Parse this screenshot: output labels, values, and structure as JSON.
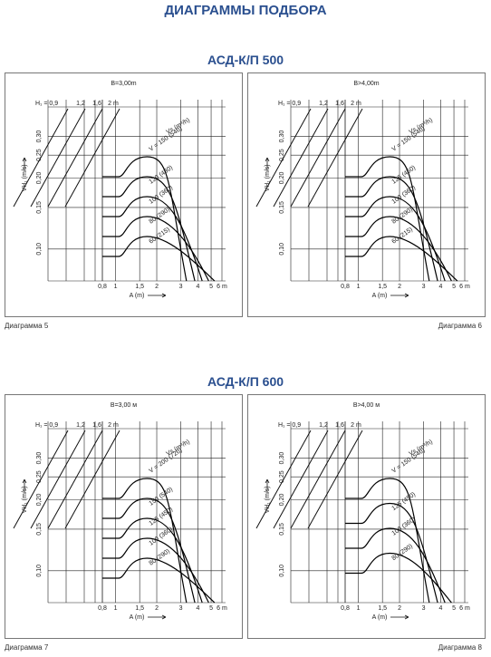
{
  "header": {
    "title": "ДИАГРАММЫ ПОДБОРА"
  },
  "sections": [
    {
      "title": "АСД-К/П 500",
      "panels": [
        {
          "caption": "B=3,00m",
          "label": "Диаграмма 5",
          "h_ticks": [
            "H₁ = 0,9",
            "1,2",
            "1,6",
            "2 m"
          ],
          "y_ticks": [
            "0,10",
            "0,15",
            "0,20",
            "0,25",
            "0,30"
          ],
          "y_label": "VH₁ (m/s)",
          "x_ticks": [
            "0,8",
            "1",
            "1,5",
            "2",
            "3",
            "4",
            "5",
            "6 m"
          ],
          "x_label": "A (m)",
          "flow_label": "Vs (m³/h)",
          "curves": [
            "V = 150 (540)",
            "120 (430)",
            "100 (360)",
            "80 (290)",
            "60 (215)"
          ]
        },
        {
          "caption": "B>4,00m",
          "label": "Диаграмма 6",
          "h_ticks": [
            "H₁ = 0,9",
            "1,2",
            "1,6",
            "2 m"
          ],
          "y_ticks": [
            "0,10",
            "0,15",
            "0,20",
            "0,25",
            "0,30"
          ],
          "y_label": "VH₁ (m/s)",
          "x_ticks": [
            "0,8",
            "1",
            "1,5",
            "2",
            "3",
            "4",
            "5",
            "6 m"
          ],
          "x_label": "A (m)",
          "flow_label": "Vs (m³/h)",
          "curves": [
            "V = 150 (540)",
            "125 (450)",
            "100 (360)",
            "80 (290)",
            "60 (215)"
          ]
        }
      ]
    },
    {
      "title": "АСД-К/П 600",
      "panels": [
        {
          "caption": "B=3,00 м",
          "label": "Диаграмма 7",
          "h_ticks": [
            "H₁ = 0,9",
            "1,2",
            "1,6",
            "2 m"
          ],
          "y_ticks": [
            "0,10",
            "0,15",
            "0,20",
            "0,25",
            "0,30"
          ],
          "y_label": "VH₁ (m/s)",
          "x_ticks": [
            "0,8",
            "1",
            "1,5",
            "2",
            "3",
            "4",
            "5",
            "6 m"
          ],
          "x_label": "A (m)",
          "flow_label": "Vs (m³/h)",
          "curves": [
            "V = 200 (720)",
            "150 (540)",
            "125 (450)",
            "100 (360)",
            "80 (290)"
          ]
        },
        {
          "caption": "B>4,00 м",
          "label": "Диаграмма 8",
          "h_ticks": [
            "H₁ = 0,9",
            "1,2",
            "1,6",
            "2 m"
          ],
          "y_ticks": [
            "0,10",
            "0,15",
            "0,20",
            "0,25",
            "0,30"
          ],
          "y_label": "VH₁ (m/s)",
          "x_ticks": [
            "0,8",
            "1",
            "1,5",
            "2",
            "3",
            "4",
            "5",
            "6 m"
          ],
          "x_label": "A (m)",
          "flow_label": "Vs (m³/h)",
          "curves": [
            "V = 150 (540)",
            "125 (450)",
            "100 (360)",
            "80 (290)"
          ]
        }
      ]
    }
  ]
}
